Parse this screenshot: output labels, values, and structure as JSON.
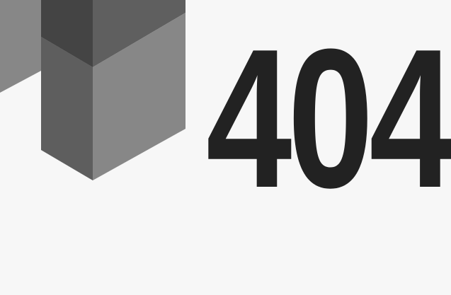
{
  "error": {
    "code": "404"
  },
  "colors": {
    "background": "#f7f7f7",
    "text": "#222222",
    "block_dark": "#444444",
    "block_mid": "#5e5e5e",
    "block_light": "#878787"
  },
  "logo": {
    "icon": "isometric-blocks-icon"
  }
}
